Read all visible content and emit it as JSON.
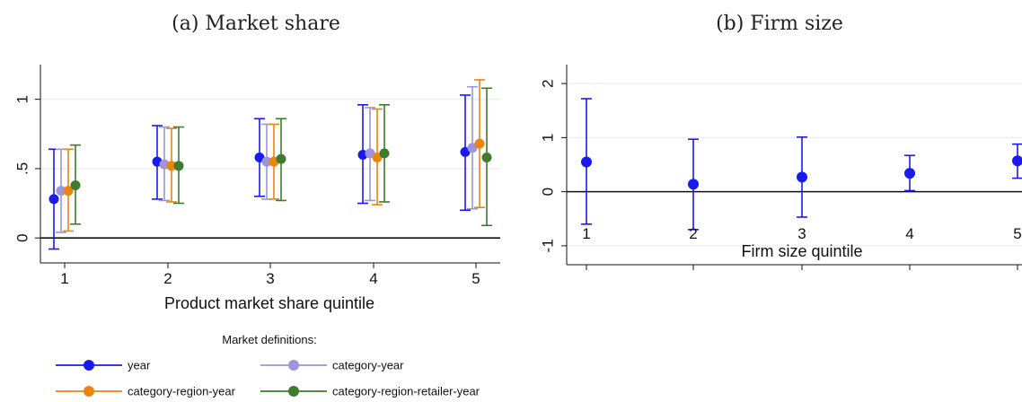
{
  "chart_data": [
    {
      "type": "scatter",
      "title": "(a) Market share",
      "xlabel": "Product market share quintile",
      "ylabel": "",
      "categories": [
        "1",
        "2",
        "3",
        "4",
        "5"
      ],
      "x_ticks": [
        "1",
        "2",
        "3",
        "4",
        "5"
      ],
      "y_ticks": [
        {
          "value": 0,
          "label": "0"
        },
        {
          "value": 0.5,
          "label": ".5"
        },
        {
          "value": 1,
          "label": "1"
        }
      ],
      "ylim": [
        -0.18,
        1.25
      ],
      "grid": true,
      "reference_line": 0,
      "error_bars": true,
      "series": [
        {
          "name": "year",
          "color": "#1a1aee",
          "values": [
            0.28,
            0.55,
            0.58,
            0.6,
            0.62
          ],
          "lower": [
            -0.08,
            0.28,
            0.3,
            0.25,
            0.2
          ],
          "upper": [
            0.64,
            0.81,
            0.86,
            0.96,
            1.03
          ]
        },
        {
          "name": "category-year",
          "color": "#9d94dc",
          "values": [
            0.34,
            0.53,
            0.55,
            0.61,
            0.65
          ],
          "lower": [
            0.04,
            0.27,
            0.28,
            0.27,
            0.21
          ],
          "upper": [
            0.64,
            0.8,
            0.82,
            0.94,
            1.09
          ]
        },
        {
          "name": "category-region-year",
          "color": "#e8860e",
          "values": [
            0.34,
            0.52,
            0.55,
            0.58,
            0.68
          ],
          "lower": [
            0.05,
            0.26,
            0.28,
            0.24,
            0.22
          ],
          "upper": [
            0.64,
            0.79,
            0.82,
            0.93,
            1.14
          ]
        },
        {
          "name": "category-region-retailer-year",
          "color": "#3f7a2f",
          "values": [
            0.38,
            0.52,
            0.57,
            0.61,
            0.58
          ],
          "lower": [
            0.1,
            0.25,
            0.27,
            0.26,
            0.09
          ],
          "upper": [
            0.67,
            0.8,
            0.86,
            0.96,
            1.08
          ]
        }
      ]
    },
    {
      "type": "scatter",
      "title": "(b) Firm size",
      "xlabel": "Firm size quintile",
      "ylabel": "",
      "categories": [
        "1",
        "2",
        "3",
        "4",
        "5"
      ],
      "x_ticks": [
        "1",
        "2",
        "3",
        "4",
        "5"
      ],
      "y_ticks": [
        {
          "value": -1,
          "label": "-1"
        },
        {
          "value": 0,
          "label": "0"
        },
        {
          "value": 1,
          "label": "1"
        },
        {
          "value": 2,
          "label": "2"
        }
      ],
      "ylim": [
        -1.35,
        2.35
      ],
      "grid": true,
      "reference_line": 0,
      "error_bars": true,
      "series": [
        {
          "color": "#1a1aee",
          "values": [
            0.55,
            0.14,
            0.27,
            0.34,
            0.57
          ],
          "lower": [
            -0.6,
            -0.7,
            -0.47,
            0.02,
            0.25
          ],
          "upper": [
            1.72,
            0.97,
            1.01,
            0.67,
            0.88
          ]
        }
      ]
    }
  ],
  "legend": {
    "title": "Market definitions:",
    "placement": "bottom-left",
    "items": [
      {
        "label": "year",
        "color": "#1a1aee"
      },
      {
        "label": "category-year",
        "color": "#9d94dc"
      },
      {
        "label": "category-region-year",
        "color": "#e8860e"
      },
      {
        "label": "category-region-retailer-year",
        "color": "#3f7a2f"
      }
    ]
  }
}
